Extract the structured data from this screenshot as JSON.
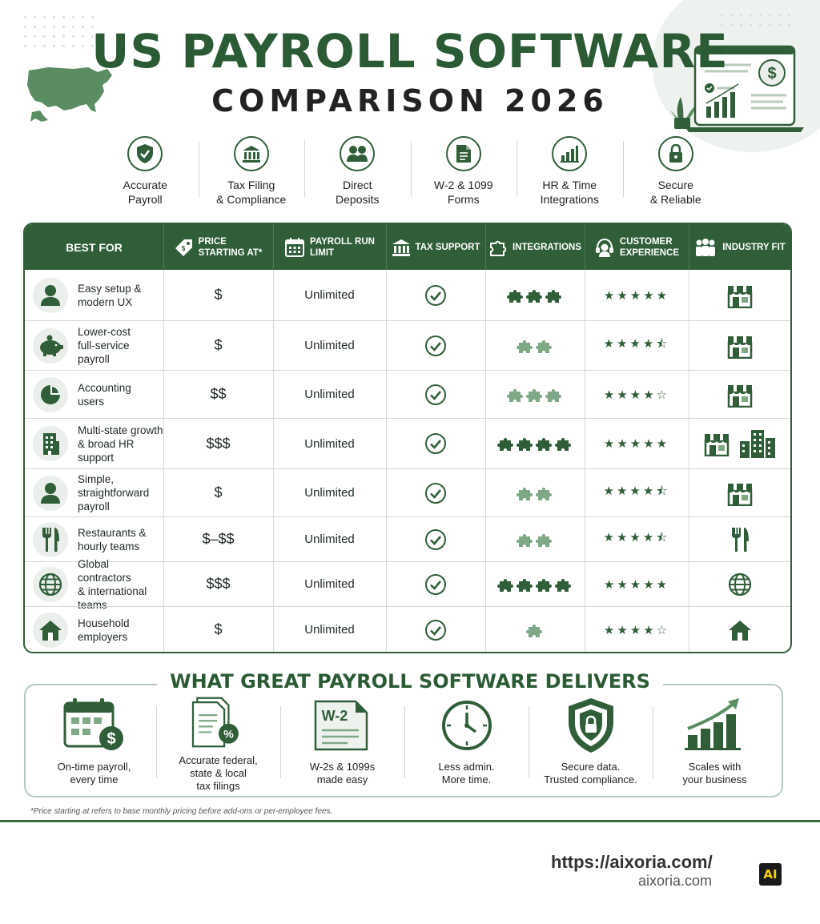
{
  "header": {
    "title": "US PAYROLL SOFTWARE",
    "subtitle": "COMPARISON 2026"
  },
  "features": [
    {
      "label": "Accurate\nPayroll",
      "icon": "shield-check-icon"
    },
    {
      "label": "Tax Filing\n& Compliance",
      "icon": "bank-icon"
    },
    {
      "label": "Direct\nDeposits",
      "icon": "people-icon"
    },
    {
      "label": "W-2 & 1099\nForms",
      "icon": "document-icon"
    },
    {
      "label": "HR & Time\nIntegrations",
      "icon": "bar-chart-icon"
    },
    {
      "label": "Secure\n& Reliable",
      "icon": "lock-icon"
    }
  ],
  "table": {
    "headers": {
      "best_for": "BEST FOR",
      "price": "PRICE\nSTARTING AT*",
      "limit": "PAYROLL RUN\nLIMIT",
      "tax": "TAX SUPPORT",
      "integrations": "INTEGRATIONS",
      "experience": "CUSTOMER\nEXPERIENCE",
      "industry": "INDUSTRY FIT"
    },
    "rows": [
      {
        "best_for": "Easy setup &\nmodern UX",
        "icon": "person-icon",
        "price": "$",
        "limit": "Unlimited",
        "integrations": 3,
        "integrations_color": "#2f5e38",
        "stars": "★★★★★",
        "industry": [
          "storefront-icon"
        ]
      },
      {
        "best_for": "Lower-cost\nfull-service\npayroll",
        "icon": "piggy-bank-icon",
        "price": "$",
        "limit": "Unlimited",
        "integrations": 2,
        "integrations_color": "#7fa886",
        "stars": "★★★★⯪",
        "industry": [
          "storefront-icon"
        ]
      },
      {
        "best_for": "Accounting\nusers",
        "icon": "pie-chart-icon",
        "price": "$$",
        "limit": "Unlimited",
        "integrations": 3,
        "integrations_color": "#7fa886",
        "stars": "★★★★☆",
        "industry": [
          "storefront-icon"
        ]
      },
      {
        "best_for": "Multi-state growth\n& broad HR\nsupport",
        "icon": "office-building-icon",
        "price": "$$$",
        "limit": "Unlimited",
        "integrations": 4,
        "integrations_color": "#2f5e38",
        "stars": "★★★★★",
        "industry": [
          "storefront-icon",
          "city-buildings-icon"
        ]
      },
      {
        "best_for": "Simple,\nstraightforward\npayroll",
        "icon": "person-icon",
        "price": "$",
        "limit": "Unlimited",
        "integrations": 2,
        "integrations_color": "#7fa886",
        "stars": "★★★★⯪",
        "industry": [
          "storefront-icon"
        ]
      },
      {
        "best_for": "Restaurants &\nhourly teams",
        "icon": "fork-knife-icon",
        "price": "$–$$",
        "limit": "Unlimited",
        "integrations": 2,
        "integrations_color": "#7fa886",
        "stars": "★★★★⯪",
        "industry": [
          "fork-knife-icon"
        ]
      },
      {
        "best_for": "Global contractors\n& international\nteams",
        "icon": "globe-icon",
        "price": "$$$",
        "limit": "Unlimited",
        "integrations": 4,
        "integrations_color": "#2f5e38",
        "stars": "★★★★★",
        "industry": [
          "globe-icon"
        ]
      },
      {
        "best_for": "Household\nemployers",
        "icon": "house-icon",
        "price": "$",
        "limit": "Unlimited",
        "integrations": 1,
        "integrations_color": "#7fa886",
        "stars": "★★★★☆",
        "industry": [
          "house-icon"
        ]
      }
    ]
  },
  "deliver": {
    "title": "WHAT GREAT PAYROLL SOFTWARE DELIVERS",
    "items": [
      {
        "label": "On-time payroll,\nevery time",
        "icon": "calendar-dollar-icon"
      },
      {
        "label": "Accurate federal,\nstate & local\ntax filings",
        "icon": "tax-document-icon"
      },
      {
        "label": "W-2s & 1099s\nmade easy",
        "icon": "w2-form-icon",
        "badge": "W-2"
      },
      {
        "label": "Less admin.\nMore time.",
        "icon": "clock-icon"
      },
      {
        "label": "Secure data.\nTrusted compliance.",
        "icon": "shield-lock-icon"
      },
      {
        "label": "Scales with\nyour business",
        "icon": "growth-chart-icon"
      }
    ]
  },
  "footnote": "*Price starting at refers to base monthly pricing before add-ons or per-employee fees.",
  "footer": {
    "url": "https://aixoria.com/",
    "domain": "aixoria.com",
    "logo": "AI"
  },
  "colors": {
    "primary": "#2f5e38",
    "light": "#7fa886",
    "border": "#d3dad5"
  }
}
